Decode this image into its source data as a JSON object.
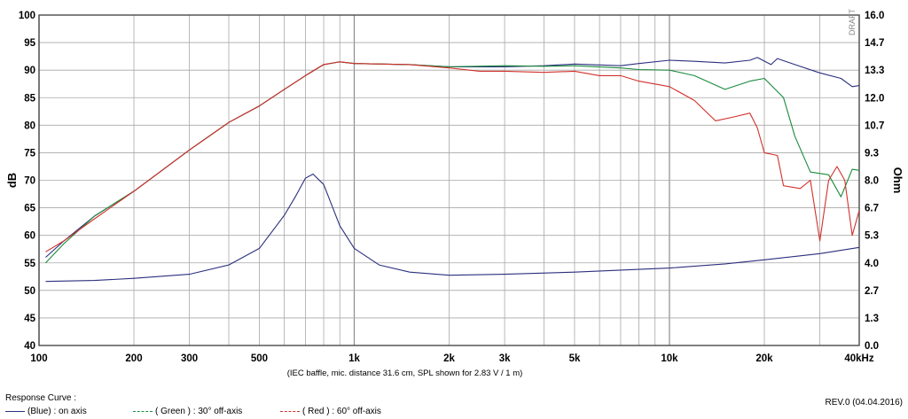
{
  "chart_data": {
    "type": "line",
    "title": "",
    "xlabel": "",
    "ylabel": "dB",
    "y2label": "Ohm",
    "xscale": "log",
    "xlim": [
      100,
      40000
    ],
    "ylim": [
      40,
      100
    ],
    "y2lim": [
      0.0,
      16.0
    ],
    "grid": true,
    "x_ticks": [
      {
        "value": 100,
        "label": "100"
      },
      {
        "value": 200,
        "label": "200"
      },
      {
        "value": 300,
        "label": "300"
      },
      {
        "value": 500,
        "label": "500"
      },
      {
        "value": 1000,
        "label": "1k"
      },
      {
        "value": 2000,
        "label": "2k"
      },
      {
        "value": 3000,
        "label": "3k"
      },
      {
        "value": 5000,
        "label": "5k"
      },
      {
        "value": 10000,
        "label": "10k"
      },
      {
        "value": 20000,
        "label": "20k"
      },
      {
        "value": 40000,
        "label": "40kHz"
      }
    ],
    "y_ticks": [
      "100",
      "95",
      "90",
      "85",
      "80",
      "75",
      "70",
      "65",
      "60",
      "55",
      "50",
      "45",
      "40"
    ],
    "y2_ticks": [
      "16.0",
      "14.7",
      "13.3",
      "12.0",
      "10.7",
      "9.3",
      "8.0",
      "6.7",
      "5.3",
      "4.0",
      "2.7",
      "1.3",
      "0.0"
    ],
    "note": "(IEC baffle, mic. distance 31.6 cm, SPL shown for 2.83 V / 1 m)",
    "watermark": "DRAFT",
    "series": [
      {
        "name": "(Blue) : on axis",
        "color": "#2b2f7d",
        "axis": "left",
        "points": [
          [
            105,
            56
          ],
          [
            120,
            59
          ],
          [
            150,
            63.5
          ],
          [
            200,
            68
          ],
          [
            300,
            75.5
          ],
          [
            400,
            80.5
          ],
          [
            500,
            83.5
          ],
          [
            600,
            86.5
          ],
          [
            700,
            89
          ],
          [
            800,
            91
          ],
          [
            900,
            91.5
          ],
          [
            1000,
            91.2
          ],
          [
            1500,
            91.0
          ],
          [
            2000,
            90.6
          ],
          [
            3000,
            90.6
          ],
          [
            4000,
            90.8
          ],
          [
            5000,
            91.1
          ],
          [
            7000,
            90.8
          ],
          [
            8000,
            91.2
          ],
          [
            10000,
            91.8
          ],
          [
            12000,
            91.6
          ],
          [
            15000,
            91.3
          ],
          [
            18000,
            91.8
          ],
          [
            19000,
            92.3
          ],
          [
            21000,
            91.0
          ],
          [
            22000,
            92.1
          ],
          [
            25000,
            91.0
          ],
          [
            30000,
            89.5
          ],
          [
            35000,
            88.5
          ],
          [
            38000,
            87.0
          ],
          [
            40000,
            87.2
          ]
        ]
      },
      {
        "name": "( Green ) : 30° off-axis",
        "color": "#1a8a3c",
        "axis": "left",
        "points": [
          [
            105,
            55
          ],
          [
            120,
            58.5
          ],
          [
            150,
            63.5
          ],
          [
            200,
            68
          ],
          [
            300,
            75.5
          ],
          [
            400,
            80.5
          ],
          [
            500,
            83.5
          ],
          [
            600,
            86.5
          ],
          [
            700,
            89
          ],
          [
            800,
            91
          ],
          [
            900,
            91.5
          ],
          [
            1000,
            91.2
          ],
          [
            1500,
            91.0
          ],
          [
            2000,
            90.6
          ],
          [
            3000,
            90.8
          ],
          [
            4000,
            90.7
          ],
          [
            5000,
            90.8
          ],
          [
            7000,
            90.4
          ],
          [
            8000,
            90.1
          ],
          [
            10000,
            90.0
          ],
          [
            12000,
            89.0
          ],
          [
            15000,
            86.5
          ],
          [
            18000,
            88.0
          ],
          [
            20000,
            88.5
          ],
          [
            23000,
            85.0
          ],
          [
            25000,
            78.0
          ],
          [
            28000,
            71.5
          ],
          [
            32000,
            71.0
          ],
          [
            35000,
            67.0
          ],
          [
            38000,
            72.0
          ],
          [
            40000,
            71.8
          ]
        ]
      },
      {
        "name": "( Red ) : 60° off-axis",
        "color": "#d3302a",
        "axis": "left",
        "points": [
          [
            105,
            57
          ],
          [
            120,
            59
          ],
          [
            150,
            63
          ],
          [
            200,
            68
          ],
          [
            300,
            75.5
          ],
          [
            400,
            80.5
          ],
          [
            500,
            83.5
          ],
          [
            600,
            86.5
          ],
          [
            700,
            89
          ],
          [
            800,
            91
          ],
          [
            900,
            91.5
          ],
          [
            1000,
            91.2
          ],
          [
            1500,
            91.0
          ],
          [
            2000,
            90.4
          ],
          [
            2500,
            89.8
          ],
          [
            3000,
            89.8
          ],
          [
            4000,
            89.6
          ],
          [
            5000,
            89.8
          ],
          [
            6000,
            89.0
          ],
          [
            7000,
            89.0
          ],
          [
            8000,
            88.0
          ],
          [
            10000,
            87.0
          ],
          [
            12000,
            84.5
          ],
          [
            14000,
            80.8
          ],
          [
            16000,
            81.5
          ],
          [
            18000,
            82.2
          ],
          [
            19000,
            79.5
          ],
          [
            20000,
            75.0
          ],
          [
            22000,
            74.5
          ],
          [
            23000,
            69.0
          ],
          [
            26000,
            68.5
          ],
          [
            28000,
            70.0
          ],
          [
            30000,
            59.0
          ],
          [
            32000,
            70.0
          ],
          [
            34000,
            72.5
          ],
          [
            36000,
            70.0
          ],
          [
            38000,
            60.0
          ],
          [
            40000,
            64.5
          ]
        ]
      },
      {
        "name": "Impedance",
        "color": "#2b2f7d",
        "axis": "right",
        "points": [
          [
            105,
            3.1
          ],
          [
            150,
            3.15
          ],
          [
            200,
            3.25
          ],
          [
            300,
            3.45
          ],
          [
            400,
            3.9
          ],
          [
            500,
            4.7
          ],
          [
            600,
            6.3
          ],
          [
            650,
            7.2
          ],
          [
            700,
            8.1
          ],
          [
            740,
            8.3
          ],
          [
            800,
            7.8
          ],
          [
            900,
            5.8
          ],
          [
            1000,
            4.7
          ],
          [
            1200,
            3.9
          ],
          [
            1500,
            3.55
          ],
          [
            2000,
            3.4
          ],
          [
            3000,
            3.45
          ],
          [
            5000,
            3.55
          ],
          [
            10000,
            3.75
          ],
          [
            15000,
            3.95
          ],
          [
            20000,
            4.15
          ],
          [
            30000,
            4.45
          ],
          [
            40000,
            4.75
          ]
        ]
      }
    ]
  },
  "footer": {
    "response_curve_label": "Response Curve :",
    "revision": "REV.0 (04.04.2016)",
    "legend": [
      {
        "label": "(Blue)  : on axis",
        "color": "#2b2f7d",
        "dash": "solid"
      },
      {
        "label": "( Green ) : 30° off-axis",
        "color": "#1a8a3c",
        "dash": "dashed"
      },
      {
        "label": "( Red ) : 60° off-axis",
        "color": "#d3302a",
        "dash": "dashed"
      }
    ]
  }
}
